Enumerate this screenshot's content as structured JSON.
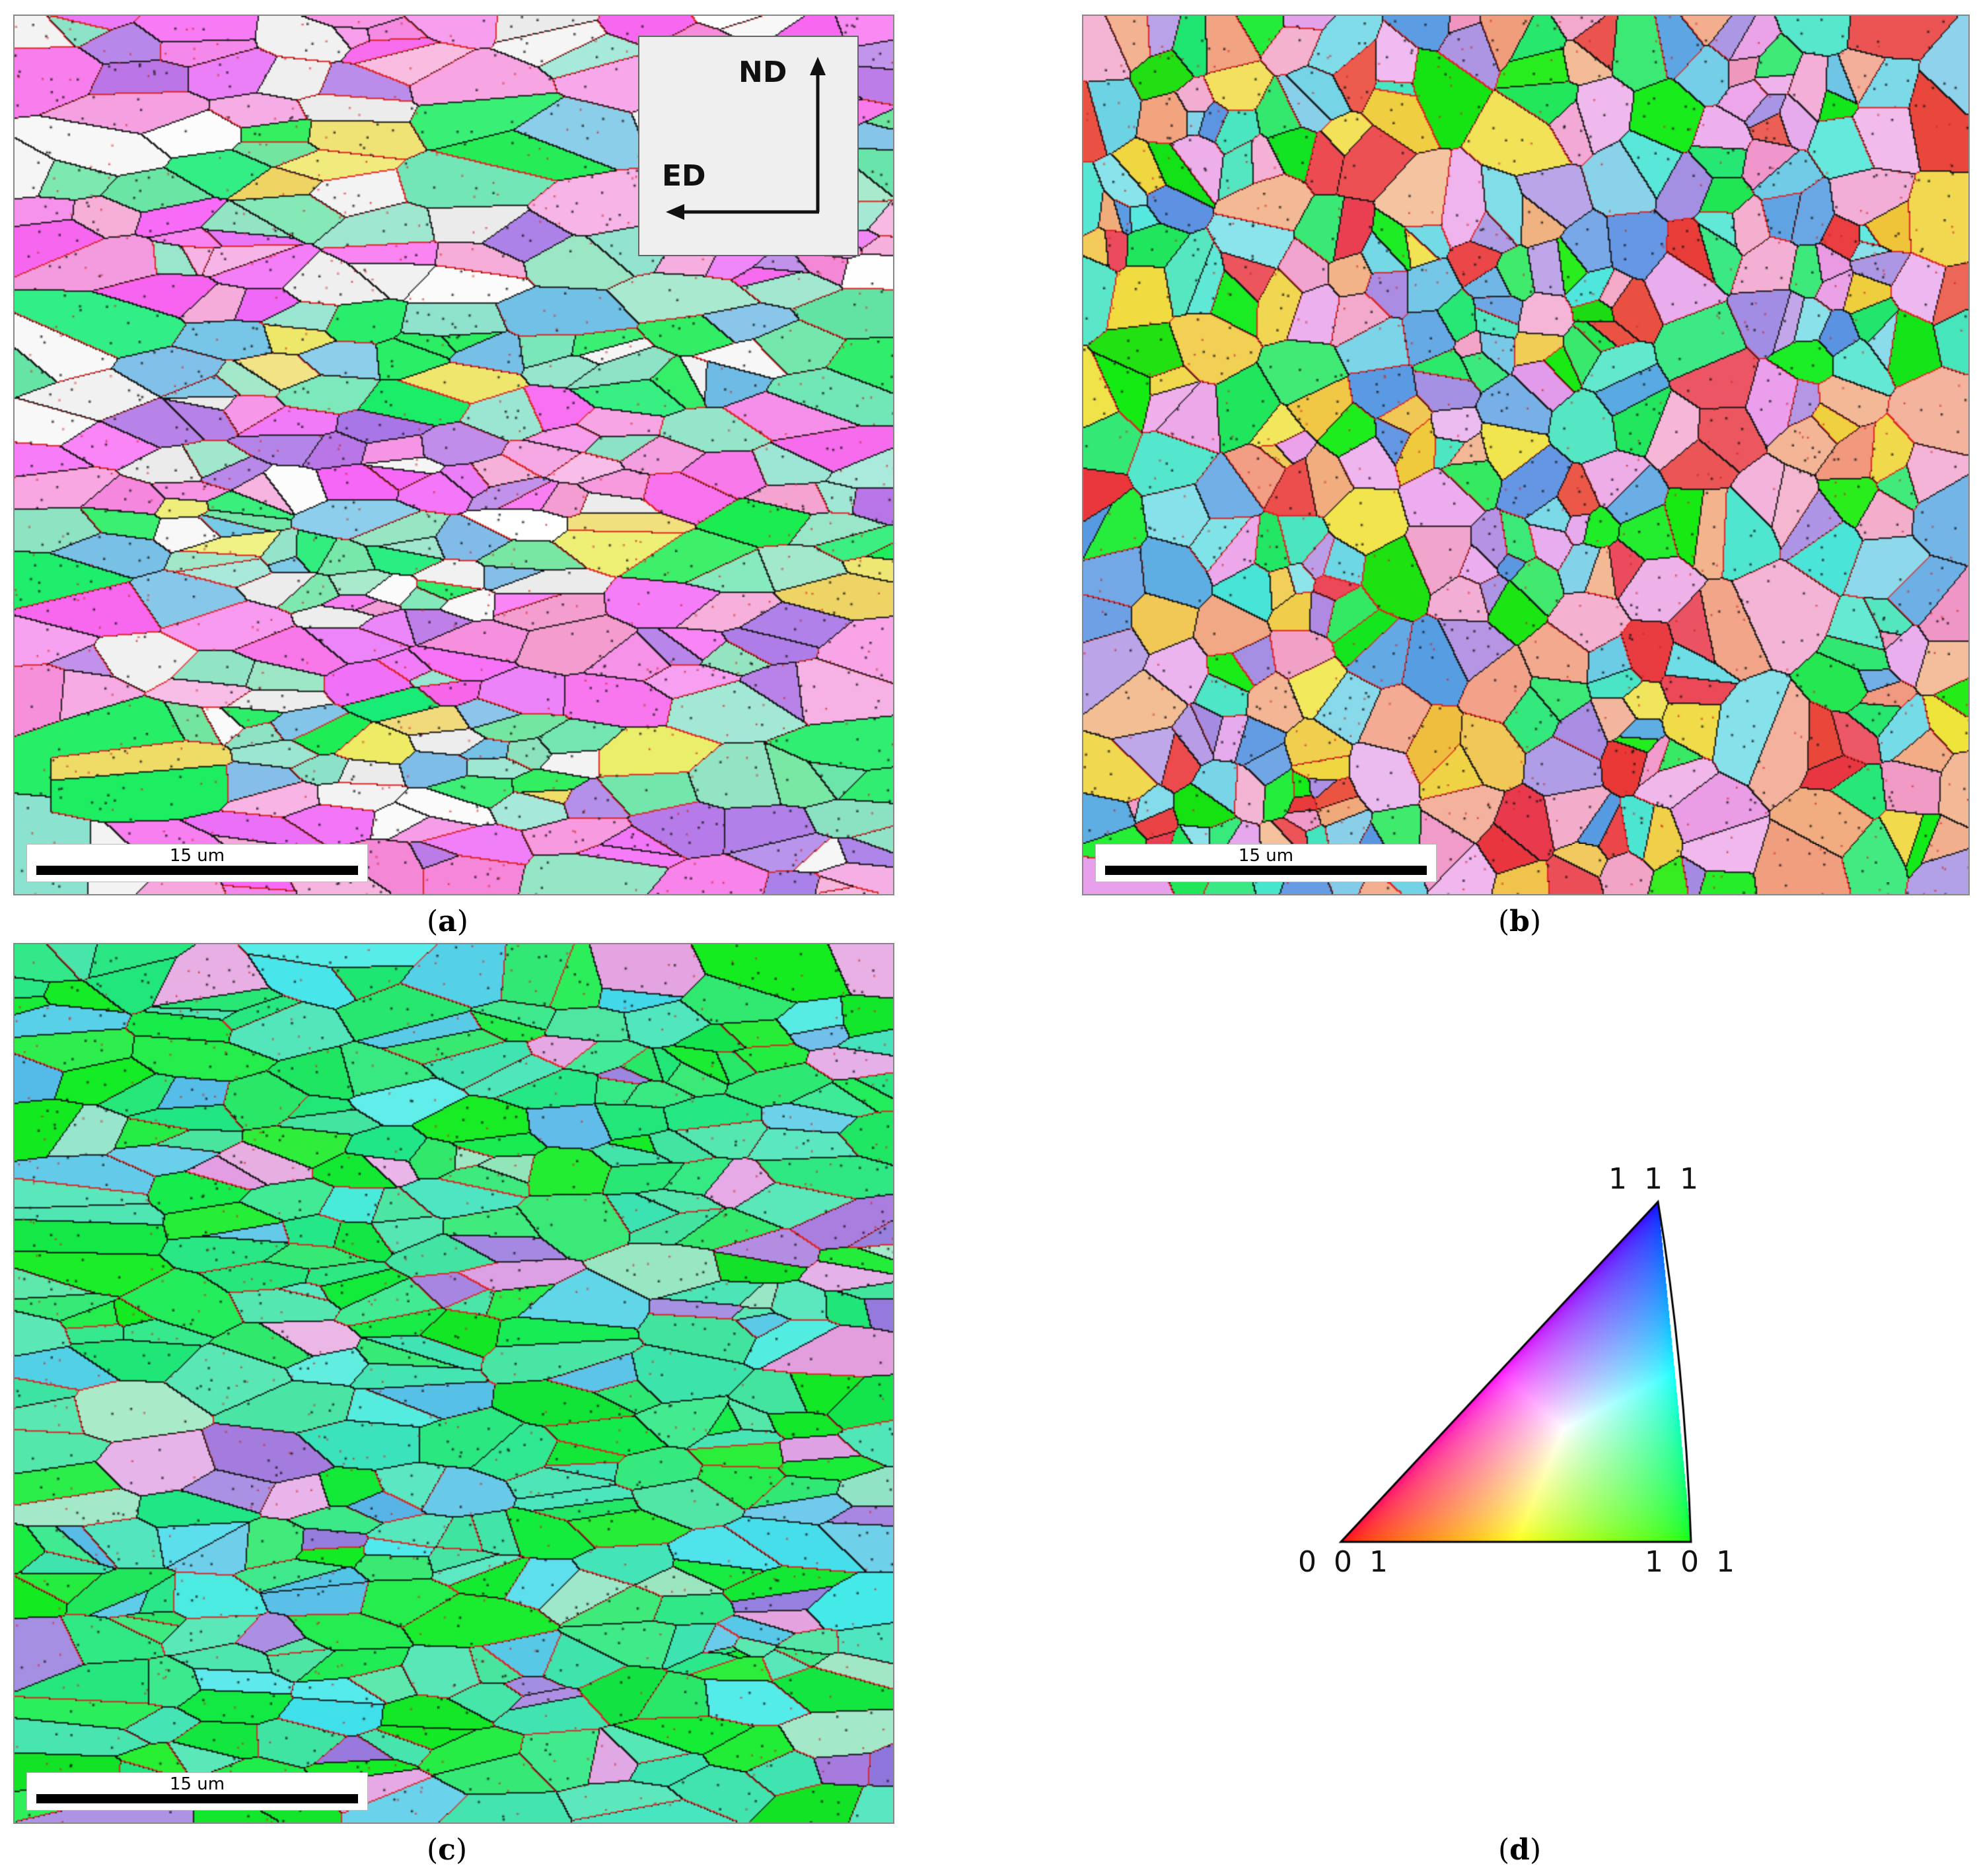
{
  "panels": [
    {
      "id": "a",
      "caption": "a",
      "scale_label": "15 um",
      "palette": "magenta-green-banded"
    },
    {
      "id": "b",
      "caption": "b",
      "scale_label": "15 um",
      "palette": "mixed-equiaxed"
    },
    {
      "id": "c",
      "caption": "c",
      "scale_label": "15 um",
      "palette": "green-dominant-banded"
    }
  ],
  "axes": {
    "nd": "ND",
    "ed": "ED"
  },
  "legend": {
    "caption": "d",
    "corner_top": "1 1 1",
    "corner_left": "0 0 1",
    "corner_right": "1 0 1",
    "colors": {
      "c001": "#ff0000",
      "c101": "#00ff00",
      "c111": "#0000ff"
    }
  },
  "colors": {
    "boundary_high": "#000000",
    "boundary_low": "#e02020"
  }
}
